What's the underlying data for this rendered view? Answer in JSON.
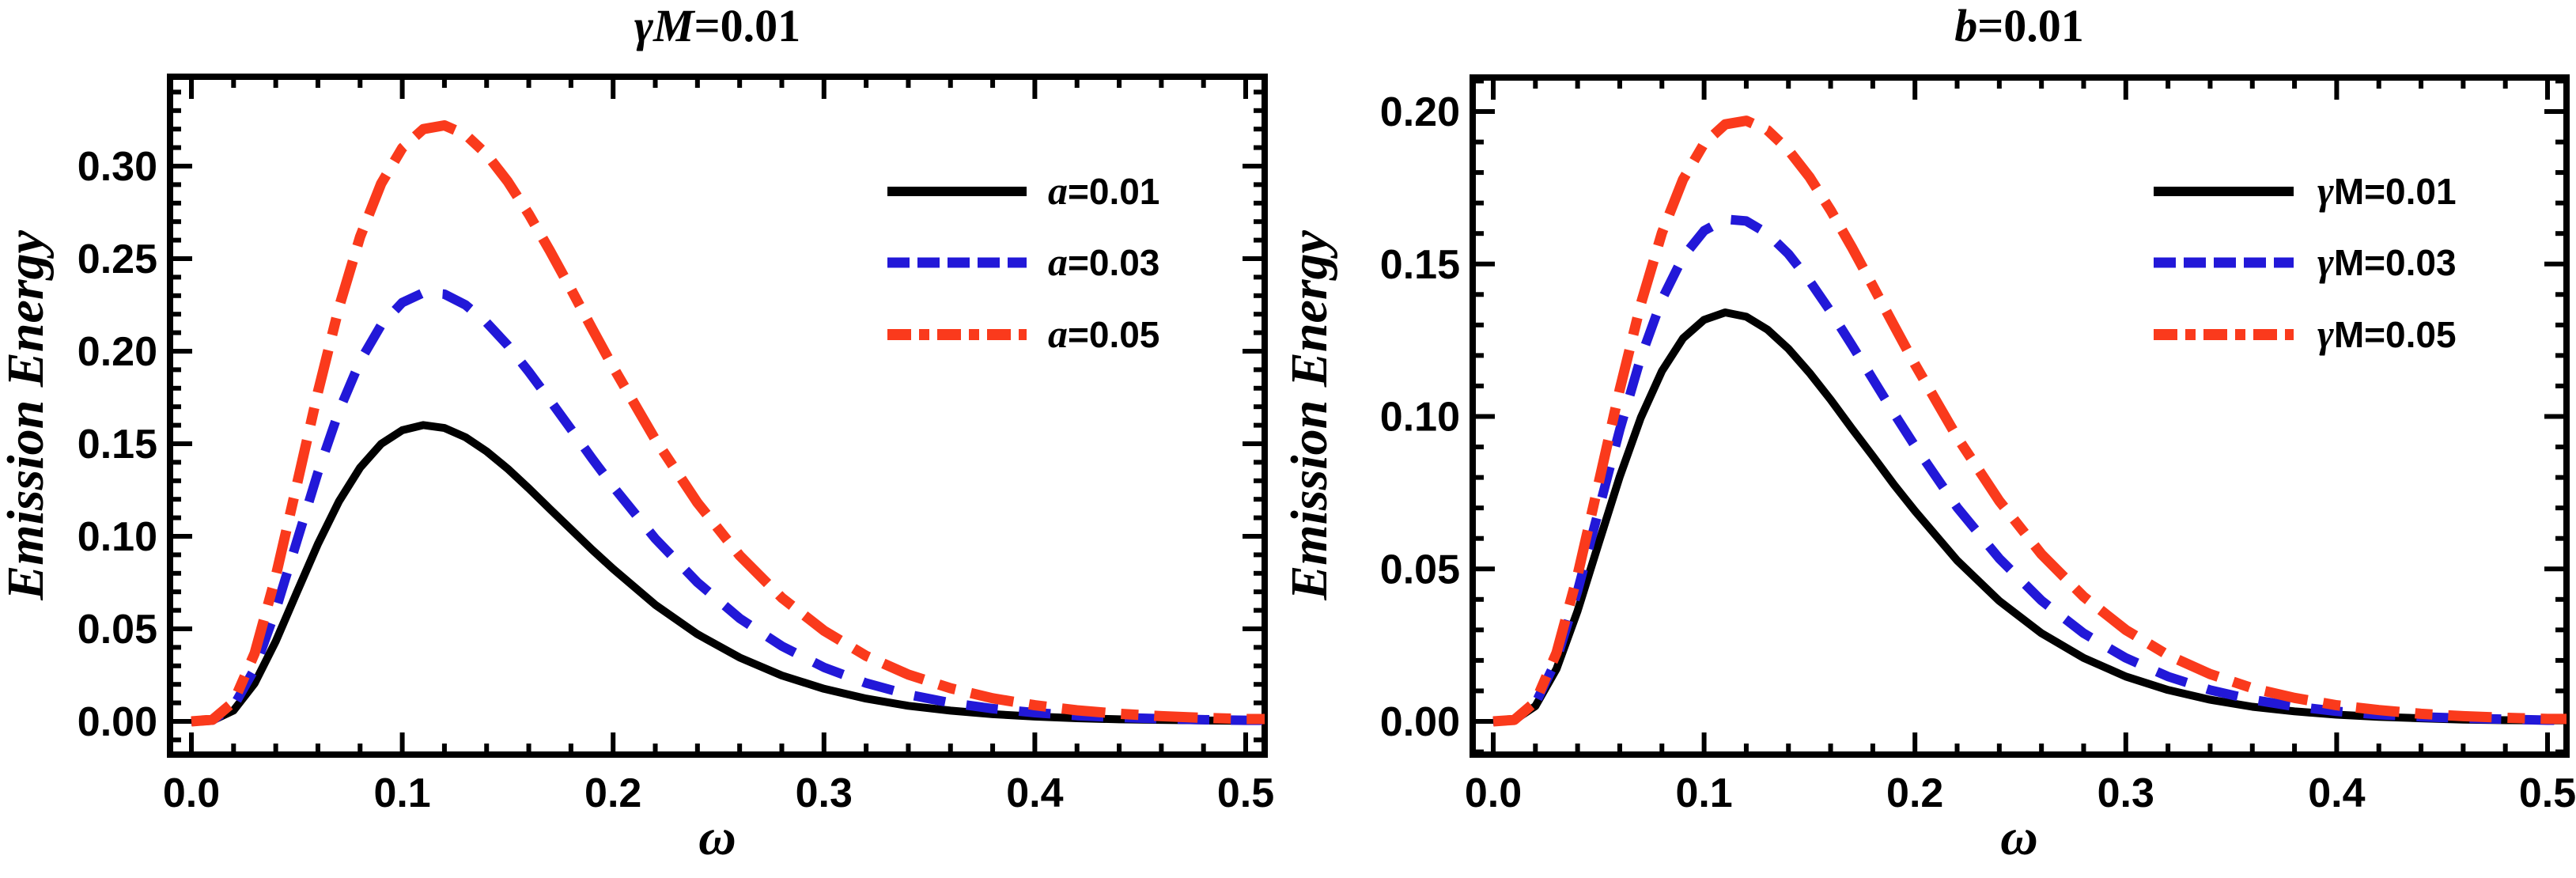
{
  "page": {
    "background": "#ffffff",
    "frame_color": "#000000",
    "text_color": "#000000"
  },
  "chart_data": [
    {
      "type": "line",
      "title": "γM=0.01",
      "title_var": "γM",
      "title_rest": "=0.01",
      "xlabel": "ω",
      "ylabel": "Emission Energy",
      "xlim": [
        0,
        0.5
      ],
      "ylim": [
        0,
        0.3
      ],
      "grid": false,
      "legend_position": "upper right",
      "x_ticks": {
        "major": [
          0,
          0.1,
          0.2,
          0.3,
          0.4,
          0.5
        ],
        "labels": [
          "0.0",
          "0.1",
          "0.2",
          "0.3",
          "0.4",
          "0.5"
        ],
        "minor_step": 0.02
      },
      "y_ticks": {
        "major": [
          0,
          0.05,
          0.1,
          0.15,
          0.2,
          0.25,
          0.3
        ],
        "labels": [
          "0.00",
          "0.05",
          "0.10",
          "0.15",
          "0.20",
          "0.25",
          "0.30"
        ],
        "minor_step": 0.01
      },
      "x": [
        0,
        0.01,
        0.02,
        0.03,
        0.04,
        0.05,
        0.06,
        0.07,
        0.08,
        0.09,
        0.1,
        0.11,
        0.12,
        0.13,
        0.14,
        0.15,
        0.16,
        0.17,
        0.18,
        0.19,
        0.2,
        0.22,
        0.24,
        0.26,
        0.28,
        0.3,
        0.32,
        0.34,
        0.36,
        0.38,
        0.4,
        0.42,
        0.44,
        0.46,
        0.48,
        0.5
      ],
      "series": [
        {
          "name": "a=0.01",
          "legend_var": "a",
          "legend_rest": "=0.01",
          "color": "#000000",
          "line_style": "solid",
          "peak": 0.16,
          "values": [
            0,
            0.0005,
            0.0059,
            0.0206,
            0.0432,
            0.0697,
            0.0959,
            0.1189,
            0.1371,
            0.1499,
            0.1573,
            0.1601,
            0.1585,
            0.1535,
            0.1459,
            0.1365,
            0.1259,
            0.1148,
            0.1038,
            0.0928,
            0.0824,
            0.063,
            0.0471,
            0.0345,
            0.0248,
            0.0176,
            0.0123,
            0.0084,
            0.0058,
            0.0039,
            0.0026,
            0.0017,
            0.0011,
            0.0008,
            0.0005,
            0.0003
          ]
        },
        {
          "name": "a=0.03",
          "legend_var": "a",
          "legend_rest": "=0.03",
          "color": "#2218d8",
          "line_style": "dashed",
          "peak": 0.232,
          "values": [
            0,
            0.0007,
            0.0082,
            0.0284,
            0.06,
            0.0973,
            0.1345,
            0.1677,
            0.1946,
            0.2141,
            0.2263,
            0.2316,
            0.2308,
            0.225,
            0.2155,
            0.2032,
            0.1889,
            0.1736,
            0.1579,
            0.1421,
            0.1269,
            0.0987,
            0.0751,
            0.0557,
            0.0407,
            0.0292,
            0.0207,
            0.0145,
            0.01,
            0.0069,
            0.0047,
            0.0031,
            0.0021,
            0.0014,
            0.0009,
            0.0006
          ]
        },
        {
          "name": "a=0.05",
          "legend_var": "a",
          "legend_rest": "=0.05",
          "color": "#fa3a1c",
          "line_style": "dashdot",
          "peak": 0.322,
          "values": [
            0,
            0.0009,
            0.0105,
            0.0368,
            0.0783,
            0.1278,
            0.178,
            0.2237,
            0.2618,
            0.2905,
            0.3098,
            0.32,
            0.322,
            0.317,
            0.3064,
            0.2917,
            0.274,
            0.2543,
            0.2335,
            0.2123,
            0.1914,
            0.1523,
            0.1181,
            0.0896,
            0.0668,
            0.049,
            0.0354,
            0.0253,
            0.0179,
            0.0125,
            0.0087,
            0.006,
            0.0041,
            0.0028,
            0.0019,
            0.0013
          ]
        }
      ]
    },
    {
      "type": "line",
      "title": "b=0.01",
      "title_var": "b",
      "title_rest": "=0.01",
      "xlabel": "ω",
      "ylabel": "Emission Energy",
      "xlim": [
        0,
        0.5
      ],
      "ylim": [
        0,
        0.2
      ],
      "grid": false,
      "legend_position": "upper right",
      "x_ticks": {
        "major": [
          0,
          0.1,
          0.2,
          0.3,
          0.4,
          0.5
        ],
        "labels": [
          "0.0",
          "0.1",
          "0.2",
          "0.3",
          "0.4",
          "0.5"
        ],
        "minor_step": 0.02
      },
      "y_ticks": {
        "major": [
          0,
          0.05,
          0.1,
          0.15,
          0.2
        ],
        "labels": [
          "0.00",
          "0.05",
          "0.10",
          "0.15",
          "0.20"
        ],
        "minor_step": 0.01
      },
      "x": [
        0,
        0.01,
        0.02,
        0.03,
        0.04,
        0.05,
        0.06,
        0.07,
        0.08,
        0.09,
        0.1,
        0.11,
        0.12,
        0.13,
        0.14,
        0.15,
        0.16,
        0.17,
        0.18,
        0.19,
        0.2,
        0.22,
        0.24,
        0.26,
        0.28,
        0.3,
        0.32,
        0.34,
        0.36,
        0.38,
        0.4,
        0.42,
        0.44,
        0.46,
        0.48,
        0.5
      ],
      "series": [
        {
          "name": "γM=0.01",
          "legend_var": "γ",
          "legend_rest": "M=0.01",
          "color": "#000000",
          "line_style": "solid",
          "peak": 0.134,
          "values": [
            0,
            0.0004,
            0.005,
            0.0172,
            0.0362,
            0.0584,
            0.0803,
            0.0996,
            0.1149,
            0.1256,
            0.1317,
            0.1341,
            0.1327,
            0.1285,
            0.1222,
            0.1143,
            0.1055,
            0.0961,
            0.087,
            0.0777,
            0.069,
            0.0528,
            0.0395,
            0.0289,
            0.0208,
            0.0147,
            0.0103,
            0.0071,
            0.0048,
            0.0033,
            0.0022,
            0.0015,
            0.001,
            0.0006,
            0.0004,
            0.0003
          ]
        },
        {
          "name": "γM=0.03",
          "legend_var": "γ",
          "legend_rest": "M=0.03",
          "color": "#2218d8",
          "line_style": "dashed",
          "peak": 0.165,
          "values": [
            0,
            0.0005,
            0.0058,
            0.0202,
            0.0427,
            0.0692,
            0.0957,
            0.1193,
            0.1384,
            0.1523,
            0.1609,
            0.1647,
            0.1641,
            0.16,
            0.1533,
            0.1445,
            0.1344,
            0.1235,
            0.1123,
            0.1011,
            0.0903,
            0.0702,
            0.0534,
            0.0396,
            0.0289,
            0.0208,
            0.0147,
            0.0103,
            0.0071,
            0.0049,
            0.0033,
            0.0022,
            0.0015,
            0.001,
            0.0007,
            0.0004
          ]
        },
        {
          "name": "γM=0.05",
          "legend_var": "γ",
          "legend_rest": "M=0.05",
          "color": "#fa3a1c",
          "line_style": "dashdot",
          "peak": 0.197,
          "values": [
            0,
            0.0005,
            0.0064,
            0.0225,
            0.0479,
            0.0782,
            0.1089,
            0.1369,
            0.1602,
            0.1777,
            0.1895,
            0.1958,
            0.197,
            0.1939,
            0.1874,
            0.1785,
            0.1676,
            0.1556,
            0.1428,
            0.1299,
            0.1171,
            0.0932,
            0.0723,
            0.0548,
            0.0409,
            0.03,
            0.0217,
            0.0155,
            0.0109,
            0.0077,
            0.0053,
            0.0037,
            0.0025,
            0.0017,
            0.0012,
            0.0008
          ]
        }
      ]
    }
  ]
}
